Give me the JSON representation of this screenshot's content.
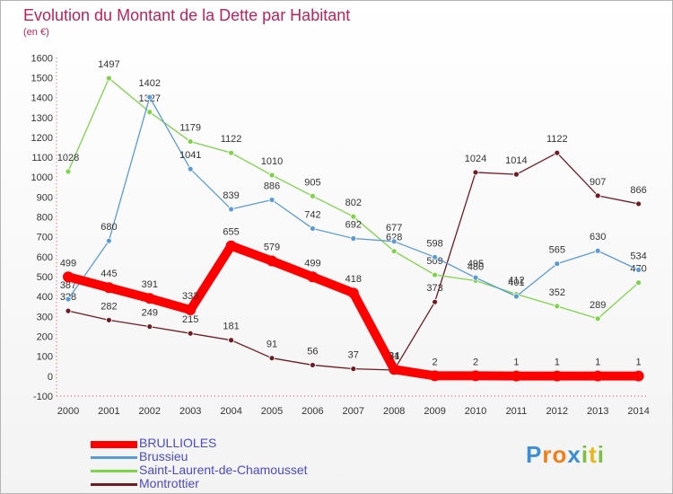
{
  "title": "Evolution du Montant de la Dette par Habitant",
  "subtitle": "(en €)",
  "logo": [
    "P",
    "r",
    "o",
    "x",
    "i",
    "t",
    "i"
  ],
  "chart_data": {
    "type": "line",
    "categories": [
      "2000",
      "2001",
      "2002",
      "2003",
      "2004",
      "2005",
      "2006",
      "2007",
      "2008",
      "2009",
      "2010",
      "2011",
      "2012",
      "2013",
      "2014"
    ],
    "ylim": [
      -100,
      1600
    ],
    "yticks": [
      "-100",
      "0",
      "100",
      "200",
      "300",
      "400",
      "500",
      "600",
      "700",
      "800",
      "900",
      "1000",
      "1100",
      "1200",
      "1300",
      "1400",
      "1500",
      "1600"
    ],
    "grid": false,
    "legend_position": "bottom-left",
    "series": [
      {
        "name": "BRULLIOLES",
        "color": "#ff0000",
        "values": [
          499,
          445,
          391,
          333,
          655,
          579,
          499,
          418,
          34,
          2,
          2,
          1,
          1,
          1,
          1
        ],
        "labels": [
          "499",
          "445",
          "391",
          "333",
          "655",
          "579",
          "499",
          "418",
          "34",
          "2",
          "2",
          "1",
          "1",
          "1",
          "1"
        ]
      },
      {
        "name": "Brussieu",
        "color": "#5b9bd5",
        "values": [
          387,
          680,
          1402,
          1041,
          839,
          886,
          742,
          692,
          677,
          598,
          495,
          401,
          565,
          630,
          534
        ],
        "labels": [
          "387",
          "680",
          "1402",
          "1041",
          "839",
          "886",
          "742",
          "692",
          "677",
          "598",
          "495",
          "401",
          "565",
          "630",
          "534"
        ]
      },
      {
        "name": "Saint-Laurent-de-Chamousset",
        "color": "#7ed348",
        "values": [
          1028,
          1497,
          1327,
          1179,
          1122,
          1010,
          905,
          802,
          628,
          509,
          480,
          412,
          352,
          289,
          470
        ],
        "labels": [
          "1028",
          "1497",
          "1327",
          "1179",
          "1122",
          "1010",
          "905",
          "802",
          "628",
          "509",
          "480",
          "412",
          "352",
          "289",
          "470"
        ]
      },
      {
        "name": "Montrottier",
        "color": "#6e1b22",
        "values": [
          328,
          282,
          249,
          215,
          181,
          91,
          56,
          37,
          31,
          373,
          1024,
          1014,
          1122,
          907,
          866
        ],
        "labels": [
          "328",
          "282",
          "249",
          "215",
          "181",
          "91",
          "56",
          "37",
          "31",
          "373",
          "1024",
          "1014",
          "1122",
          "907",
          "866"
        ]
      }
    ]
  }
}
